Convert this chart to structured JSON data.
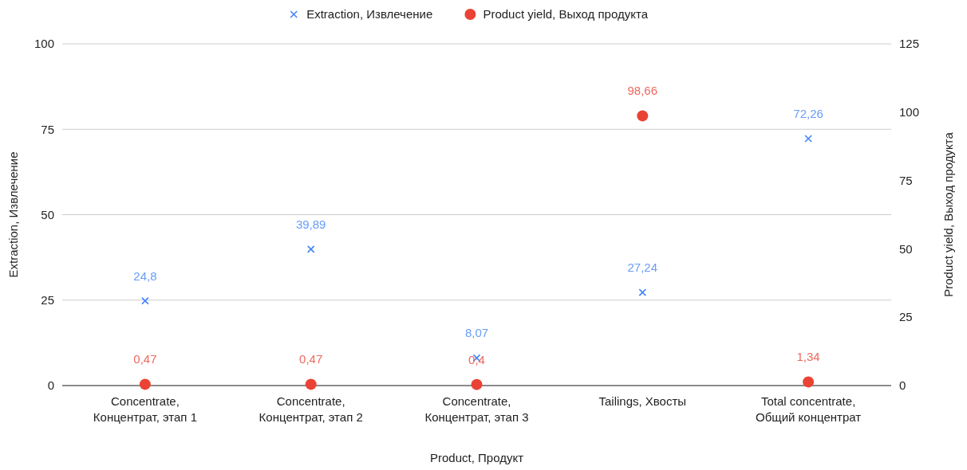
{
  "chart_data": {
    "type": "scatter",
    "xlabel": "Product, Продукт",
    "ylabel": "Extraction, Извлечение",
    "y2label": "Product yield, Выход продукта",
    "categories": [
      "Concentrate, Концентрат, этап 1",
      "Concentrate, Концентрат, этап 2",
      "Concentrate, Концентрат, этап 3",
      "Tailings, Хвосты",
      "Total concentrate, Общий концентрат"
    ],
    "series": [
      {
        "name": "Extraction, Извлечение",
        "color": "#4285f4",
        "marker": "cross",
        "values": [
          24.8,
          39.89,
          8.07,
          27.24,
          72.26
        ],
        "value_labels": [
          "24,8",
          "39,89",
          "8,07",
          "27,24",
          "72,26"
        ]
      },
      {
        "name": "Product yield, Выход продукта",
        "color": "#ea4335",
        "marker": "circle",
        "axis": "y2",
        "values": [
          0.47,
          0.47,
          0.4,
          98.66,
          1.34
        ],
        "value_labels": [
          "0,47",
          "0,47",
          "0,4",
          "98,66",
          "1,34"
        ]
      }
    ],
    "ylim": [
      0,
      100
    ],
    "yticks": [
      0,
      25,
      50,
      75,
      100
    ],
    "y2lim": [
      0,
      125
    ],
    "y2ticks": [
      0,
      25,
      50,
      75,
      100,
      125
    ],
    "grid": "y",
    "legend": "top"
  }
}
